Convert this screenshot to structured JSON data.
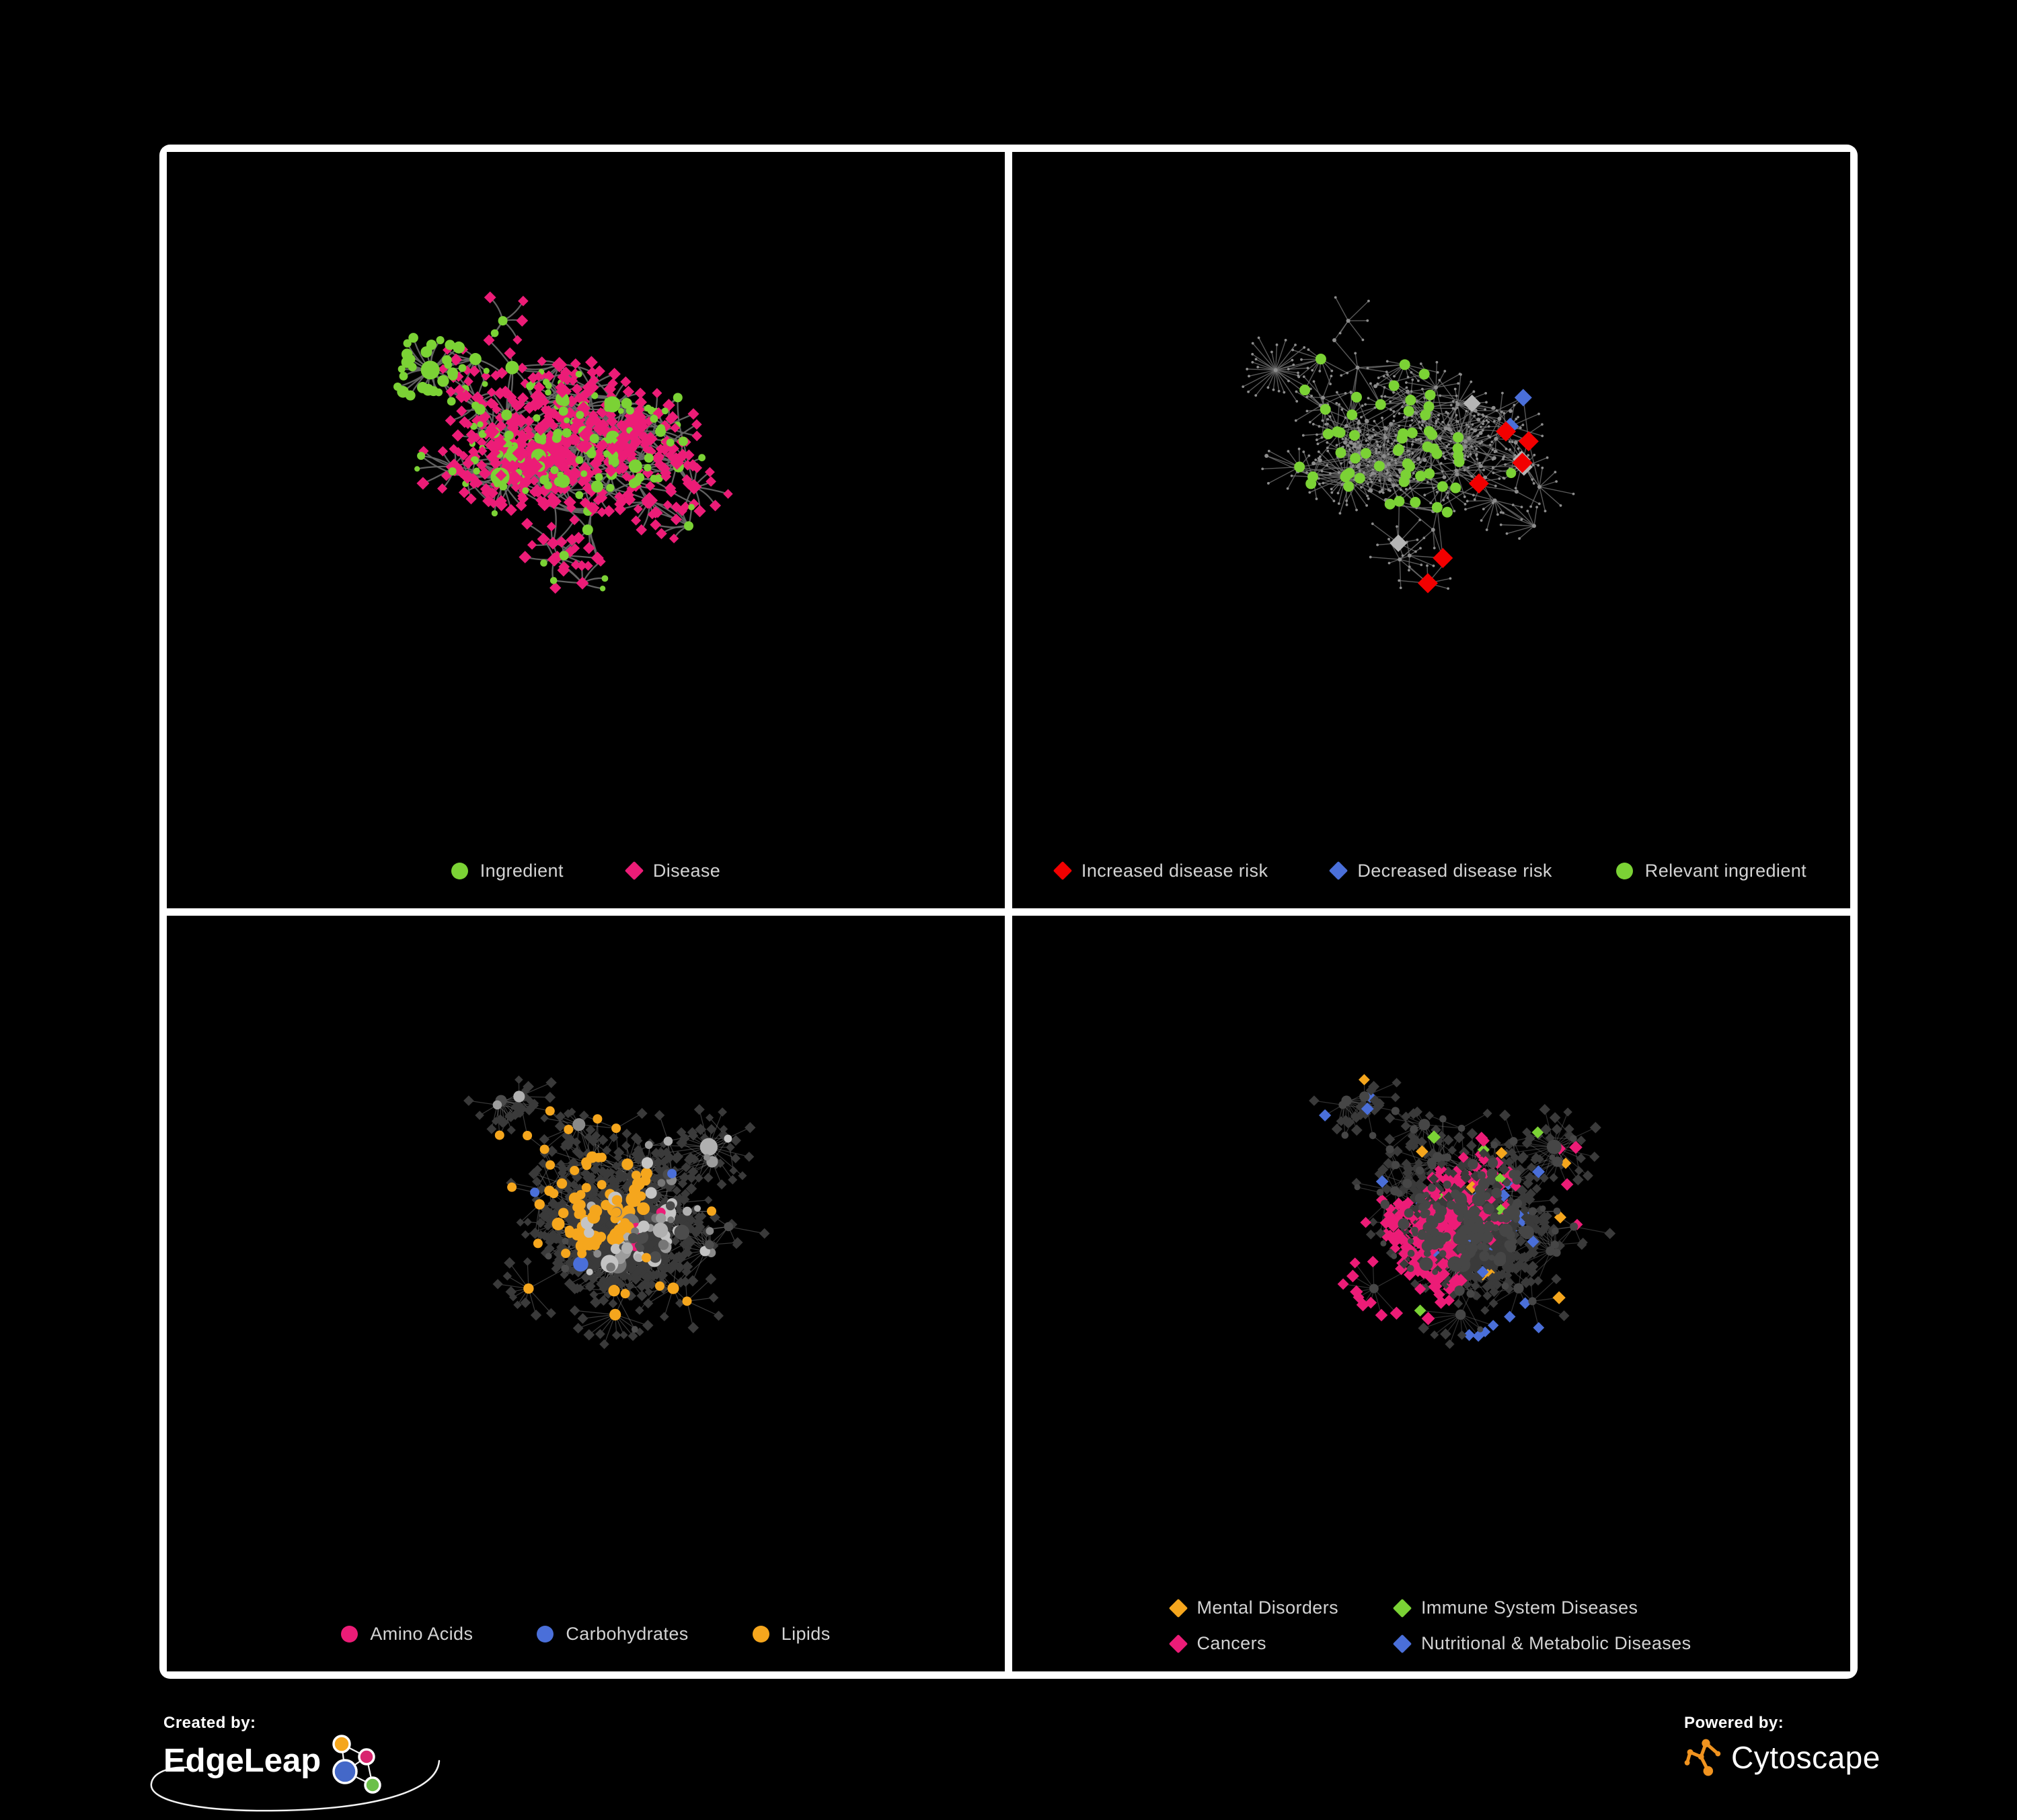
{
  "palette": {
    "green": "#7BD235",
    "pink": "#EC1C77",
    "red": "#F20000",
    "blue": "#4A6FD9",
    "silver": "#B5B5B5",
    "orange": "#F5A61D",
    "darkNode": "#3A3A3A",
    "grayDot": "#8D8D8D",
    "hubDark": "#464646",
    "panelBorder": "#FFFFFF",
    "background": "#000000",
    "legendText": "#D3D3D3"
  },
  "panels": [
    {
      "name": "ingredient-disease",
      "style": "tl",
      "layout": "layoutA",
      "legend": {
        "columns": 1,
        "items": [
          {
            "label": "Ingredient",
            "shape": "circle",
            "color": "#7BD235"
          },
          {
            "label": "Disease",
            "shape": "diamond",
            "color": "#EC1C77"
          }
        ]
      }
    },
    {
      "name": "disease-risk",
      "style": "tr",
      "layout": "layoutA",
      "legend": {
        "columns": 1,
        "items": [
          {
            "label": "Increased disease risk",
            "shape": "diamond",
            "color": "#F20000"
          },
          {
            "label": "Decreased disease risk",
            "shape": "diamond",
            "color": "#4A6FD9"
          },
          {
            "label": "Relevant ingredient",
            "shape": "circle",
            "color": "#7BD235"
          }
        ]
      }
    },
    {
      "name": "nutrient-classes",
      "style": "bl",
      "layout": "layoutB",
      "legend": {
        "columns": 1,
        "items": [
          {
            "label": "Amino Acids",
            "shape": "circle",
            "color": "#EC1C77"
          },
          {
            "label": "Carbohydrates",
            "shape": "circle",
            "color": "#4A6FD9"
          },
          {
            "label": "Lipids",
            "shape": "circle",
            "color": "#F5A61D"
          }
        ]
      }
    },
    {
      "name": "disease-classes",
      "style": "br",
      "layout": "layoutB",
      "legend": {
        "columns": 2,
        "items": [
          {
            "label": "Mental Disorders",
            "shape": "diamond",
            "color": "#F5A61D"
          },
          {
            "label": "Immune System Diseases",
            "shape": "diamond",
            "color": "#7BD235"
          },
          {
            "label": "Cancers",
            "shape": "diamond",
            "color": "#EC1C77"
          },
          {
            "label": "Nutritional & Metabolic Diseases",
            "shape": "diamond",
            "color": "#4A6FD9"
          }
        ]
      }
    }
  ],
  "footer": {
    "created_by_label": "Created by:",
    "brand": "EdgeLeap",
    "powered_by_label": "Powered by:",
    "engine": "Cytoscape"
  },
  "brand": {
    "edgeleap_node_colors": [
      "#F5A61D",
      "#D8256F",
      "#4468C8",
      "#6CC04A"
    ],
    "cytoscape_orange": "#F0931F"
  },
  "gen": {
    "layoutA": {
      "seed": 20417,
      "hubs": 150,
      "step": 0.055,
      "extra": 20,
      "leafProb": 0.55,
      "leafMax": 9,
      "bigHubs": 3,
      "bigMin": 18,
      "bigVar": 12,
      "leafRad": 0.031
    },
    "layoutB": {
      "seed": 77121,
      "hubs": 170,
      "step": 0.052,
      "extra": 26,
      "leafProb": 0.62,
      "leafMax": 11,
      "bigHubs": 6,
      "bigMin": 20,
      "bigVar": 15,
      "leafRad": 0.034
    },
    "styles": {
      "tl": {
        "drawSeed": 5,
        "edge": {
          "color": "#666666",
          "w": 2.3,
          "o": 0.95,
          "curve": true
        },
        "hubDiamondProb": 0.4,
        "leafPinkProb": 0.8
      },
      "tr": {
        "drawSeed": 6,
        "edge": {
          "color": "#6E6E6E",
          "w": 1.4,
          "o": 0.8,
          "curve": false
        },
        "greenBox": [
          0.3,
          0.28,
          0.55,
          0.55
        ],
        "coreBox": [
          0.18,
          0.12,
          0.75,
          0.68
        ],
        "pGreen": 0.45,
        "pRedCore": 0.2,
        "pBlueCore": 0.26,
        "pSilverCore": 0.31,
        "pGreenCore": 0.36,
        "pRedOut": 0.05,
        "pBlueOut": 0.085,
        "pSilverOut": 0.105
      },
      "bl": {
        "drawSeed": 7,
        "edge": {
          "color": "#8A8A8A",
          "w": 1.2,
          "o": 0.42,
          "curve": false
        },
        "grays": [
          "#9C9C9C",
          "#8A8A8A",
          "#B0B0B0",
          "#C4C4C4",
          "#767676",
          "#4C4C4C"
        ],
        "orangeClusters": [
          [
            0.47,
            0.38,
            0.11,
            0.8
          ],
          [
            0.37,
            0.16,
            0.09,
            0.45
          ],
          [
            0.58,
            0.55,
            0.055,
            0.9
          ],
          [
            0.25,
            0.3,
            0.08,
            0.3
          ]
        ],
        "blueClusters": [
          [
            0.45,
            0.33,
            0.07,
            0.35
          ]
        ],
        "pPink": 0.05,
        "pBlue": 0.03,
        "pOrange": 0.06
      },
      "br": {
        "drawSeed": 8,
        "edge": {
          "color": "#7D7D7D",
          "w": 1.2,
          "o": 0.38,
          "curve": false
        },
        "pGreen": 0.012,
        "orangeClusters": [
          [
            0.13,
            0.4,
            0.12,
            0.85
          ],
          [
            0.3,
            0.06,
            0.08,
            0.5
          ],
          [
            0.05,
            0.6,
            0.05,
            0.5
          ]
        ],
        "pinkClusters": [
          [
            0.44,
            0.5,
            0.1,
            0.75
          ],
          [
            0.55,
            0.4,
            0.06,
            0.45
          ],
          [
            0.93,
            0.17,
            0.045,
            0.6
          ]
        ],
        "blueClusters": [
          [
            0.62,
            0.62,
            0.075,
            0.8
          ],
          [
            0.8,
            0.27,
            0.09,
            0.55
          ],
          [
            0.7,
            0.09,
            0.06,
            0.45
          ],
          [
            0.88,
            0.53,
            0.05,
            0.5
          ],
          [
            0.1,
            0.07,
            0.05,
            0.4
          ],
          [
            0.33,
            0.82,
            0.05,
            0.35
          ]
        ],
        "pBlueScatter": 0.06,
        "pOrangeScatter": 0.085,
        "pPinkScatter": 0.105
      }
    }
  }
}
